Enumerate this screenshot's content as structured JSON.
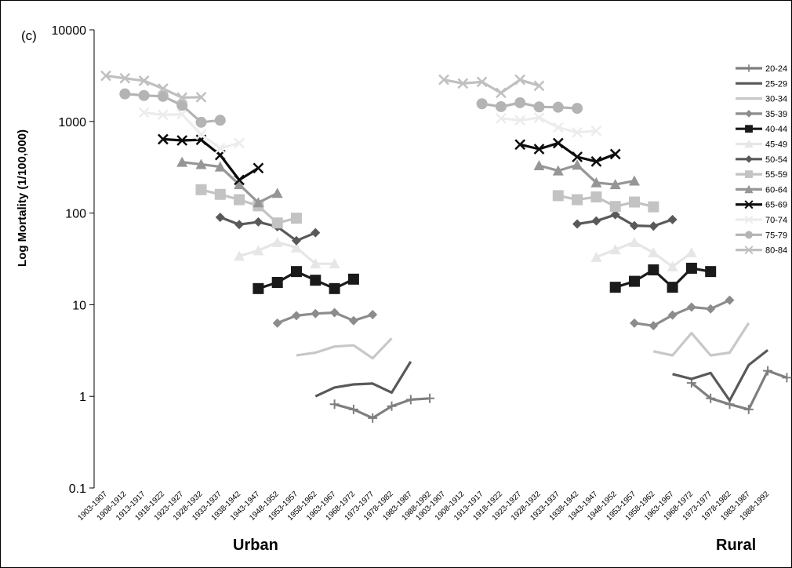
{
  "panel_label": "(c)",
  "chart_data": {
    "type": "line",
    "ylabel": "Log Mortality (1/100,000)",
    "yscale": "log",
    "ylim": [
      0.1,
      10000
    ],
    "y_ticks": [
      "0.1",
      "1",
      "10",
      "100",
      "1000",
      "10000"
    ],
    "x_ticks": [
      "1903-1907",
      "1908-1912",
      "1913-1917",
      "1918-1922",
      "1923-1927",
      "1928-1932",
      "1933-1937",
      "1938-1942",
      "1943-1947",
      "1948-1952",
      "1953-1957",
      "1958-1962",
      "1963-1967",
      "1968-1972",
      "1973-1977",
      "1978-1982",
      "1983-1987",
      "1988-1992"
    ],
    "groups": [
      "Urban",
      "Rural"
    ],
    "legend_position": "right",
    "series": [
      {
        "name": "20-24",
        "color": "#7f7f7f",
        "marker": "plus",
        "urban_start": 12,
        "urban": [
          0.82,
          0.72,
          0.58,
          0.78,
          0.92,
          0.95
        ],
        "rural_start": 13,
        "rural": [
          1.4,
          0.95,
          0.82,
          0.72,
          1.9,
          1.6
        ]
      },
      {
        "name": "25-29",
        "color": "#595959",
        "marker": "none",
        "urban_start": 11,
        "urban": [
          1.0,
          1.25,
          1.35,
          1.38,
          1.1,
          2.4
        ],
        "rural_start": 12,
        "rural": [
          1.75,
          1.55,
          1.8,
          0.9,
          2.2,
          3.2
        ]
      },
      {
        "name": "30-34",
        "color": "#c8c8c8",
        "marker": "none",
        "urban_start": 10,
        "urban": [
          2.8,
          3.0,
          3.5,
          3.6,
          2.6,
          4.3
        ],
        "rural_start": 11,
        "rural": [
          3.1,
          2.8,
          4.9,
          2.8,
          3.0,
          6.3
        ]
      },
      {
        "name": "35-39",
        "color": "#8c8c8c",
        "marker": "diamond",
        "urban_start": 9,
        "urban": [
          6.3,
          7.6,
          8.0,
          8.2,
          6.7,
          7.8
        ],
        "rural_start": 10,
        "rural": [
          6.3,
          5.9,
          7.7,
          9.4,
          9.0,
          11.2
        ]
      },
      {
        "name": "40-44",
        "color": "#1a1a1a",
        "marker": "square",
        "urban_start": 8,
        "urban": [
          15,
          17.5,
          23,
          18.5,
          15,
          19
        ],
        "rural_start": 9,
        "rural": [
          15.5,
          18,
          24,
          15.5,
          25,
          23
        ]
      },
      {
        "name": "45-49",
        "color": "#e6e6e6",
        "marker": "triangle",
        "urban_start": 7,
        "urban": [
          34,
          39,
          48,
          42,
          28,
          28
        ],
        "rural_start": 8,
        "rural": [
          33,
          40,
          48,
          37,
          26,
          37
        ]
      },
      {
        "name": "50-54",
        "color": "#595959",
        "marker": "diamond",
        "urban_start": 6,
        "urban": [
          90,
          75,
          80,
          71,
          50,
          61
        ],
        "rural_start": 7,
        "rural": [
          76,
          82,
          96,
          73,
          72,
          85
        ]
      },
      {
        "name": "55-59",
        "color": "#c3c3c3",
        "marker": "square",
        "urban_start": 5,
        "urban": [
          180,
          160,
          140,
          120,
          78,
          88
        ],
        "rural_start": 6,
        "rural": [
          155,
          140,
          150,
          118,
          132,
          117
        ]
      },
      {
        "name": "60-64",
        "color": "#969696",
        "marker": "triangle",
        "urban_start": 4,
        "urban": [
          360,
          340,
          320,
          205,
          130,
          165
        ],
        "rural_start": 5,
        "rural": [
          330,
          290,
          335,
          215,
          205,
          225
        ]
      },
      {
        "name": "65-69",
        "color": "#0d0d0d",
        "marker": "x",
        "urban_start": 3,
        "urban": [
          640,
          620,
          630,
          430,
          230,
          310
        ],
        "rural_start": 4,
        "rural": [
          560,
          500,
          580,
          410,
          365,
          440
        ]
      },
      {
        "name": "70-74",
        "color": "#ececec",
        "marker": "x",
        "urban_start": 2,
        "urban": [
          1250,
          1180,
          1200,
          720,
          510,
          580
        ],
        "rural_start": 3,
        "rural": [
          1080,
          1030,
          1100,
          860,
          760,
          790
        ]
      },
      {
        "name": "75-79",
        "color": "#b4b4b4",
        "marker": "circle",
        "urban_start": 1,
        "urban": [
          2000,
          1920,
          1880,
          1500,
          980,
          1030
        ],
        "rural_start": 2,
        "rural": [
          1560,
          1450,
          1600,
          1440,
          1430,
          1390
        ]
      },
      {
        "name": "80-84",
        "color": "#c0c0c0",
        "marker": "x",
        "urban_start": 0,
        "urban": [
          3150,
          2960,
          2780,
          2280,
          1820,
          1840
        ],
        "rural_start": 0,
        "rural": [
          2850,
          2600,
          2700,
          2050,
          2850,
          2450
        ]
      }
    ]
  }
}
